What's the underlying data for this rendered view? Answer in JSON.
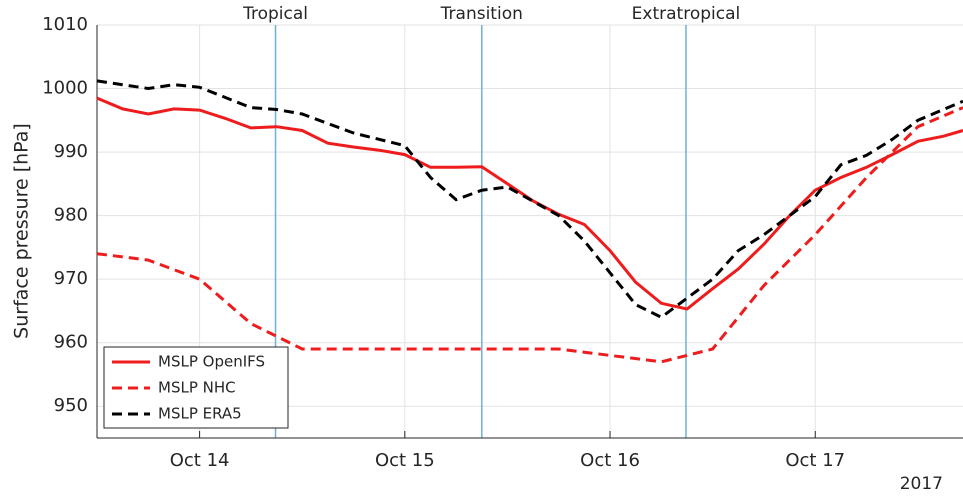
{
  "chart_data": {
    "type": "line",
    "ylabel": "Surface pressure [hPa]",
    "year_label": "2017",
    "xlim": [
      13.5,
      17.72
    ],
    "xticks": [
      {
        "value": 14,
        "label": "Oct 14"
      },
      {
        "value": 15,
        "label": "Oct 15"
      },
      {
        "value": 16,
        "label": "Oct 16"
      },
      {
        "value": 17,
        "label": "Oct 17"
      }
    ],
    "ylim": [
      945,
      1010
    ],
    "yticks": [
      950,
      960,
      970,
      980,
      990,
      1000,
      1010
    ],
    "grid": true,
    "legend": "lower left",
    "annotations": [
      {
        "text": "Tropical",
        "x": 14.37
      },
      {
        "text": "Transition",
        "x": 15.375
      },
      {
        "text": "Extratropical",
        "x": 16.37
      }
    ],
    "series": [
      {
        "name": "MSLP OpenIFS",
        "color": "#ee1c1c",
        "style": "solid",
        "x": [
          13.5,
          13.625,
          13.75,
          13.875,
          14,
          14.125,
          14.25,
          14.375,
          14.5,
          14.625,
          14.75,
          14.875,
          15,
          15.125,
          15.25,
          15.375,
          15.5,
          15.625,
          15.75,
          15.875,
          16,
          16.125,
          16.25,
          16.375,
          16.5,
          16.625,
          16.75,
          16.875,
          17,
          17.125,
          17.25,
          17.375,
          17.5,
          17.625,
          17.72
        ],
        "values": [
          998.5,
          996.8,
          996,
          996.8,
          996.6,
          995.3,
          993.8,
          994,
          993.4,
          991.4,
          990.8,
          990.3,
          989.6,
          987.6,
          987.6,
          987.7,
          985,
          982.3,
          980.2,
          978.6,
          974.5,
          969.5,
          966.2,
          965.3,
          968.5,
          971.6,
          975.5,
          980,
          984,
          986,
          987.6,
          989.6,
          991.7,
          992.5,
          993.4
        ]
      },
      {
        "name": "MSLP NHC",
        "color": "#ee1c1c",
        "style": "dashed",
        "x": [
          13.5,
          13.75,
          14,
          14.25,
          14.5,
          14.75,
          15,
          15.25,
          15.5,
          15.75,
          16,
          16.25,
          16.375,
          16.5,
          16.75,
          17,
          17.25,
          17.5,
          17.72
        ],
        "values": [
          974,
          973,
          970,
          963,
          959,
          959,
          959,
          959,
          959,
          959,
          958,
          957,
          958,
          959,
          969,
          977,
          986,
          994,
          997
        ]
      },
      {
        "name": "MSLP ERA5",
        "color": "#000000",
        "style": "dashed",
        "x": [
          13.5,
          13.75,
          13.875,
          14,
          14.25,
          14.375,
          14.5,
          14.75,
          15,
          15.125,
          15.25,
          15.375,
          15.5,
          15.75,
          15.875,
          16,
          16.125,
          16.25,
          16.375,
          16.5,
          16.625,
          16.75,
          17,
          17.125,
          17.25,
          17.375,
          17.5,
          17.72
        ],
        "values": [
          1001.2,
          1000,
          1000.6,
          1000.2,
          997,
          996.7,
          996,
          993,
          991,
          986,
          982.5,
          984,
          984.5,
          980,
          976,
          971,
          966,
          964,
          967,
          970,
          974.5,
          977,
          983,
          988,
          989.5,
          992,
          995,
          998
        ]
      }
    ]
  }
}
